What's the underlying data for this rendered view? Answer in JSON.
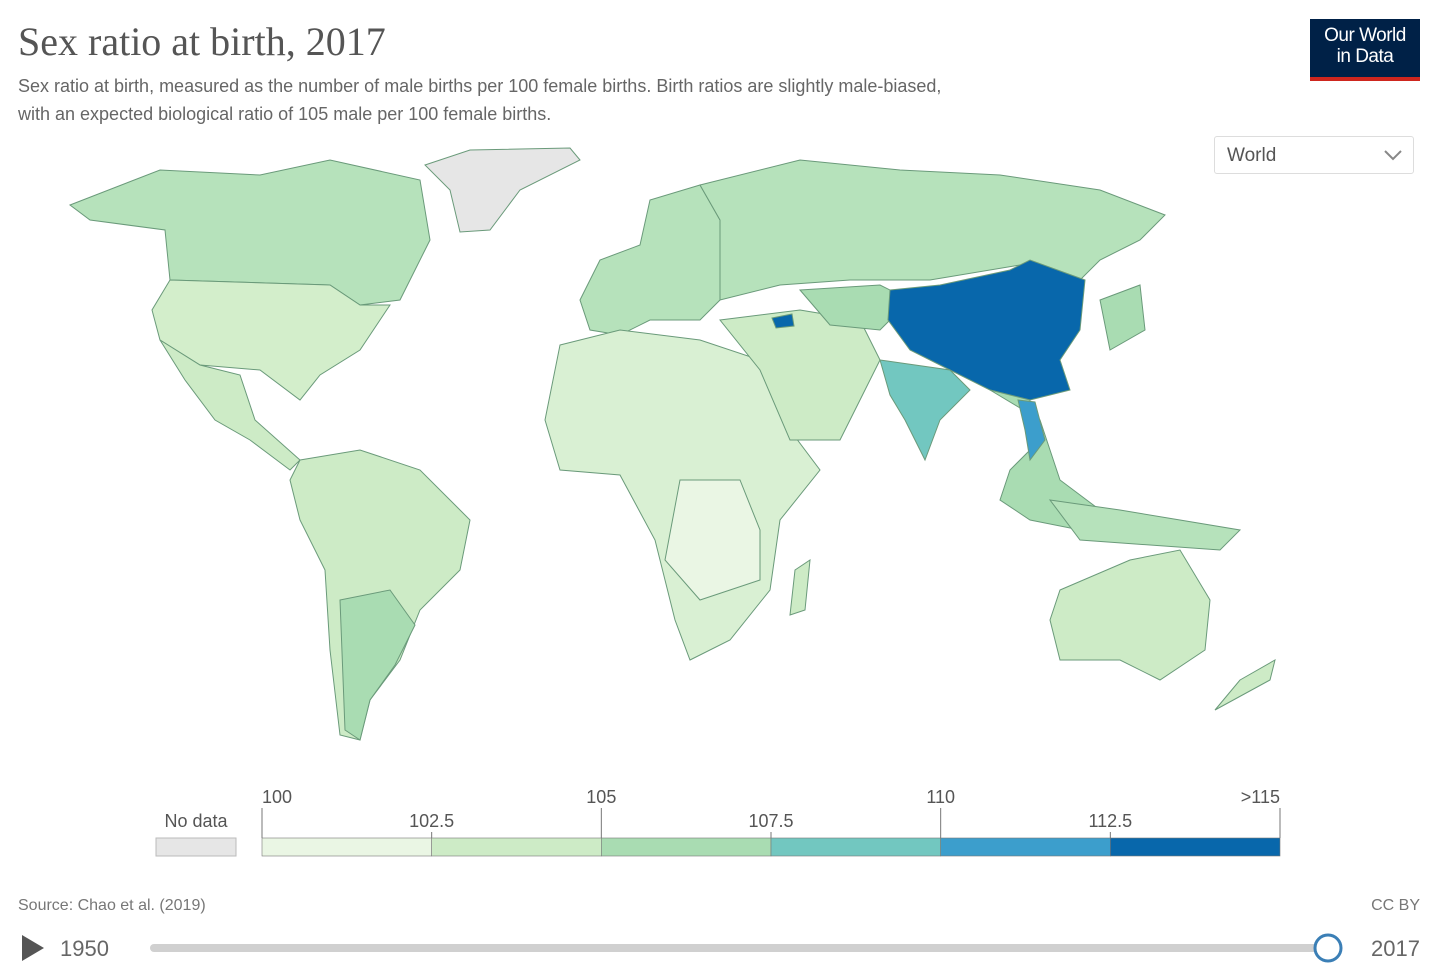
{
  "header": {
    "title": "Sex ratio at birth, 2017",
    "subtitle_lines": [
      "Sex ratio at birth, measured as the number of male births per 100 female births. Birth ratios are slightly male-biased,",
      "with an expected biological ratio of 105 male per 100 female births."
    ],
    "logo_lines": [
      "Our World",
      "in Data"
    ]
  },
  "controls": {
    "region": "World"
  },
  "legend": {
    "no_data": "No data",
    "no_data_color": "#e6e6e6",
    "ticks": [
      100,
      102.5,
      105,
      107.5,
      110,
      112.5,
      {
        "value": 115,
        "label": ">115"
      }
    ],
    "colors": [
      "#eaf6e4",
      "#cdebc6",
      "#a9dcb2",
      "#72c7c0",
      "#3c9ecc",
      "#0867ab"
    ]
  },
  "footer": {
    "source": "Source: Chao et al. (2019)",
    "license": "CC BY"
  },
  "timeline": {
    "start": 1950,
    "end": 2017
  }
}
